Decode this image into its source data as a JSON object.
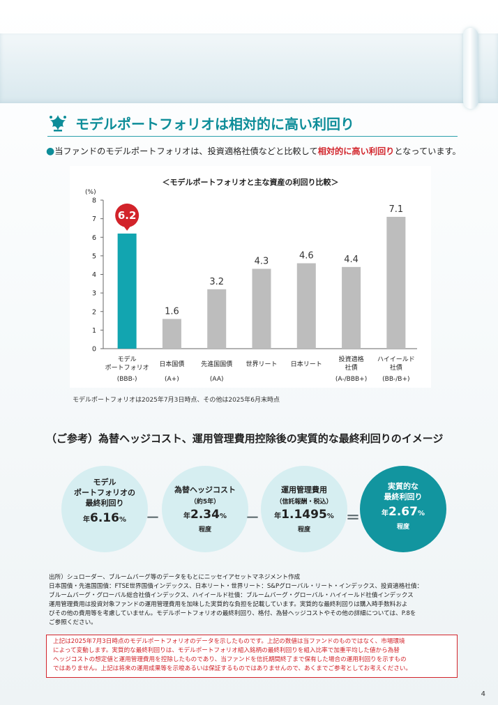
{
  "heading": {
    "title": "モデルポートフォリオは相対的に高い利回り"
  },
  "lead": {
    "bullet": "●",
    "before": "当ファンドのモデルポートフォリオは、投資適格社債などと比較して",
    "highlight": "相対的に高い利回り",
    "after": "となっています。"
  },
  "colors": {
    "accent": "#0e8d99",
    "highlight_bar": "#12a5b0",
    "gray_bar": "#bdbdbd",
    "marker": "#d2232a"
  },
  "chart_data": {
    "type": "bar",
    "title": "＜モデルポートフォリオと主な資産の利回り比較＞",
    "ylabel": "(%)",
    "ylim": [
      0,
      8
    ],
    "yticks": [
      0,
      1,
      2,
      3,
      4,
      5,
      6,
      7,
      8
    ],
    "grid": false,
    "categories": [
      [
        "モデル",
        "ポートフォリオ"
      ],
      [
        "日本国債"
      ],
      [
        "先進国国債"
      ],
      [
        "世界リート"
      ],
      [
        "日本リート"
      ],
      [
        "投資適格",
        "社債"
      ],
      [
        "ハイイールド",
        "社債"
      ]
    ],
    "ratings": [
      "(BBB-)",
      "(A+)",
      "(AA)",
      "",
      "",
      "(A-/BBB+)",
      "(BB-/B+)"
    ],
    "values": [
      6.2,
      1.6,
      3.2,
      4.3,
      4.6,
      4.4,
      7.1
    ],
    "value_labels": [
      "6.2",
      "1.6",
      "3.2",
      "4.3",
      "4.6",
      "4.4",
      "7.1"
    ],
    "highlighted_index": 0
  },
  "chart_note": "モデルポートフォリオは2025年7月3日時点、その他は2025年6月末時点",
  "reference": {
    "title": "（ご参考）為替ヘッジコスト、運用管理費用控除後の実質的な最終利回りのイメージ",
    "circles": [
      {
        "label_lines": [
          "モデル",
          "ポートフォリオの",
          "最終利回り"
        ],
        "sub": "",
        "prefix": "年",
        "value": "6.16",
        "unit": "%",
        "suffix": ""
      },
      {
        "label_lines": [
          "為替ヘッジコスト"
        ],
        "sub": "（約5年）",
        "prefix": "年",
        "value": "2.34",
        "unit": "%",
        "suffix": "程度"
      },
      {
        "label_lines": [
          "運用管理費用"
        ],
        "sub": "（信託報酬・税込）",
        "prefix": "年",
        "value": "1.1495",
        "unit": "%",
        "suffix": "程度"
      },
      {
        "label_lines": [
          "実質的な",
          "最終利回り"
        ],
        "sub": "",
        "prefix": "年",
        "value": "2.67",
        "unit": "%",
        "suffix": "程度"
      }
    ],
    "operators": [
      "－",
      "－",
      "＝"
    ]
  },
  "source_lines": [
    "出所）シュローダー、ブルームバーグ等のデータをもとにニッセイアセットマネジメント作成",
    "日本国債・先進国国債：FTSE世界国債インデックス、日本リート・世界リート：S&Pグローバル・リート・インデックス、投資適格社債：",
    "ブルームバーグ・グローバル総合社債インデックス、ハイイールド社債：ブルームバーグ・グローバル・ハイイールド社債インデックス",
    "運用管理費用は投資対象ファンドの運用管理費用を加味した実質的な負担を記載しています。実質的な最終利回りは購入時手数料およ",
    "びその他の費用等を考慮していません。モデルポートフォリオの最終利回り、格付、為替ヘッジコストやその他の詳細については、P.8を",
    "ご参照ください。"
  ],
  "disclaimer_lines": [
    "上記は2025年7月3日時点のモデルポートフォリオのデータを示したものです。上記の数値は当ファンドのものではなく、市場環境",
    "によって変動します。実質的な最終利回りは、モデルポートフォリオ組入銘柄の最終利回りを組入比率で加重平均した値から為替",
    "ヘッジコストの想定値と運用管理費用を控除したものであり、当ファンドを信託期間終了まで保有した場合の運用利回りを示すもの",
    "ではありません。上記は将来の運用成果等を示唆あるいは保証するものではありませんので、あくまでご参考としてお考えください。"
  ],
  "page_number": "4"
}
